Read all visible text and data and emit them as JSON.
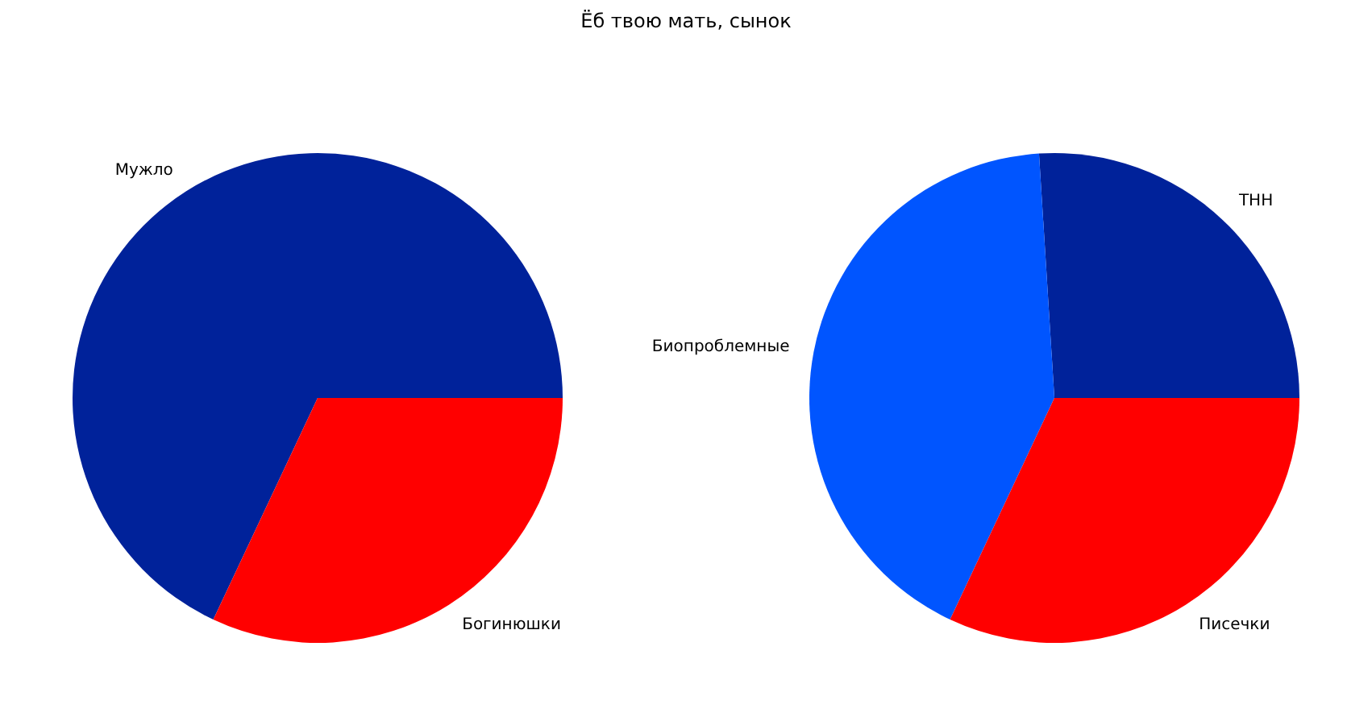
{
  "chart_data": [
    {
      "type": "pie",
      "title": "Ёб твою мать, сынок",
      "categories": [
        "Мужло",
        "Богинюшки"
      ],
      "values": [
        68,
        32
      ],
      "colors": [
        "#00229a",
        "#ff0000"
      ]
    },
    {
      "type": "pie",
      "categories": [
        "ТНН",
        "Биопроблемные",
        "Писечки"
      ],
      "values": [
        26,
        42,
        32
      ],
      "colors": [
        "#00229a",
        "#0055ff",
        "#ff0000"
      ]
    }
  ]
}
